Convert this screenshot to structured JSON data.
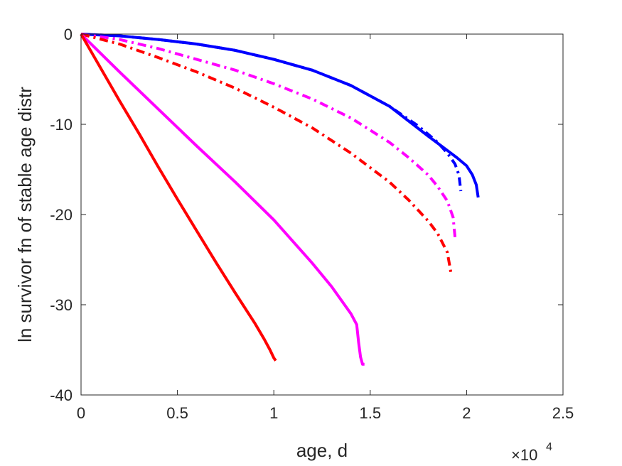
{
  "chart_data": {
    "type": "line",
    "xlabel": "age, d",
    "ylabel": "ln survivor fn of stable age distr",
    "x_exponent_label": {
      "base": "×10",
      "exp": "4"
    },
    "xlim": [
      0,
      25000
    ],
    "ylim": [
      -40,
      0
    ],
    "x_ticks": [
      0,
      5000,
      10000,
      15000,
      20000,
      25000
    ],
    "x_tick_labels": [
      "0",
      "0.5",
      "1",
      "1.5",
      "2",
      "2.5"
    ],
    "y_ticks": [
      0,
      -10,
      -20,
      -30,
      -40
    ],
    "y_tick_labels": [
      "0",
      "-10",
      "-20",
      "-30",
      "-40"
    ],
    "grid": false,
    "series": [
      {
        "color": "#0000ff",
        "style": "solid",
        "x": [
          0,
          2000,
          4000,
          6000,
          8000,
          10000,
          12000,
          14000,
          16000,
          18000,
          19000,
          19500,
          20000,
          20300,
          20500,
          20600
        ],
        "y": [
          0,
          -0.2,
          -0.6,
          -1.1,
          -1.8,
          -2.8,
          -4.0,
          -5.7,
          -8.0,
          -11.3,
          -12.9,
          -13.7,
          -14.6,
          -15.6,
          -16.7,
          -18.1
        ]
      },
      {
        "color": "#0000ff",
        "style": "dashdot",
        "x": [
          0,
          2000,
          4000,
          6000,
          8000,
          10000,
          12000,
          14000,
          16000,
          17500,
          18500,
          19000,
          19400,
          19600,
          19700
        ],
        "y": [
          0,
          -0.2,
          -0.6,
          -1.1,
          -1.8,
          -2.8,
          -4.0,
          -5.7,
          -8.0,
          -10.2,
          -12.0,
          -13.2,
          -14.4,
          -15.6,
          -17.4
        ]
      },
      {
        "color": "#ff00ff",
        "style": "dashdot",
        "x": [
          0,
          2000,
          4000,
          6000,
          8000,
          10000,
          12000,
          14000,
          16000,
          17000,
          18000,
          18500,
          19000,
          19300,
          19400
        ],
        "y": [
          0,
          -0.6,
          -1.6,
          -2.8,
          -4.0,
          -5.5,
          -7.2,
          -9.3,
          -12.0,
          -13.7,
          -15.6,
          -16.9,
          -18.5,
          -20.3,
          -22.5
        ]
      },
      {
        "color": "#ff0000",
        "style": "dashdot",
        "x": [
          0,
          2000,
          4000,
          6000,
          8000,
          10000,
          12000,
          14000,
          16000,
          17000,
          18000,
          18500,
          19000,
          19200
        ],
        "y": [
          0,
          -1.1,
          -2.6,
          -4.2,
          -6.0,
          -8.1,
          -10.4,
          -13.2,
          -16.4,
          -18.4,
          -20.7,
          -22.1,
          -24.2,
          -26.6
        ]
      },
      {
        "color": "#ff00ff",
        "style": "solid",
        "x": [
          0,
          2000,
          4000,
          6000,
          8000,
          10000,
          12000,
          13000,
          14000,
          14300,
          14400,
          14500,
          14600,
          14700
        ],
        "y": [
          0,
          -4.2,
          -8.3,
          -12.4,
          -16.4,
          -20.6,
          -25.4,
          -28.0,
          -31.0,
          -32.2,
          -34.2,
          -35.8,
          -36.6,
          -36.6
        ]
      },
      {
        "color": "#ff0000",
        "style": "solid",
        "x": [
          0,
          1000,
          2000,
          3000,
          4000,
          5000,
          6000,
          7000,
          8000,
          9000,
          9500,
          9800,
          10000,
          10100
        ],
        "y": [
          0,
          -3.7,
          -7.4,
          -11.0,
          -14.7,
          -18.3,
          -21.8,
          -25.3,
          -28.7,
          -32.0,
          -33.8,
          -35.0,
          -35.9,
          -36.2
        ]
      }
    ]
  }
}
